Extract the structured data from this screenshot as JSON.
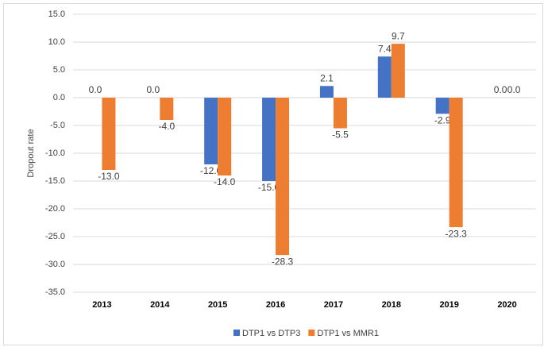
{
  "chart_data": {
    "type": "bar",
    "y_label": "Dropout rate",
    "categories": [
      "2013",
      "2014",
      "2015",
      "2016",
      "2017",
      "2018",
      "2019",
      "2020"
    ],
    "series": [
      {
        "name": "DTP1 vs DTP3",
        "color": "#4472c4",
        "values": [
          0,
          0,
          -12,
          -15,
          2.1,
          7.4,
          -2.9,
          0
        ],
        "value_labels": [
          "0.0",
          "0.0",
          "-12.0",
          "-15.0",
          "2.1",
          "7.4",
          "-2.9",
          "0.0"
        ]
      },
      {
        "name": "DTP1 vs MMR1",
        "color": "#ed7d31",
        "values": [
          -13,
          -4,
          -14,
          -28.3,
          -5.5,
          9.7,
          -23.3,
          0
        ],
        "value_labels": [
          "-13.0",
          "-4.0",
          "-14.0",
          "-28.3",
          "-5.5",
          "9.7",
          "-23.3",
          "0.0"
        ]
      }
    ],
    "ylim": [
      -35,
      15
    ],
    "yticks": [
      {
        "value": 15,
        "label": "15.0"
      },
      {
        "value": 10,
        "label": "10.0"
      },
      {
        "value": 5,
        "label": "5.0"
      },
      {
        "value": 0,
        "label": "0.0"
      },
      {
        "value": -5,
        "label": "-5.0"
      },
      {
        "value": -10,
        "label": "-10.0"
      },
      {
        "value": -15,
        "label": "-15.0"
      },
      {
        "value": -20,
        "label": "-20.0"
      },
      {
        "value": -25,
        "label": "-25.0"
      },
      {
        "value": -30,
        "label": "-30.0"
      },
      {
        "value": -35,
        "label": "-35.0"
      }
    ],
    "grid": true,
    "legend": "bottom"
  }
}
